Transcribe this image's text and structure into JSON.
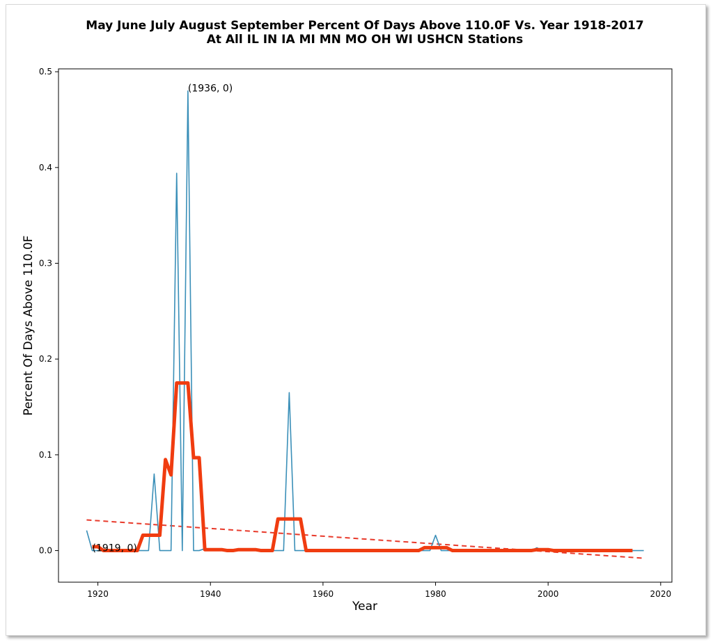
{
  "chart_data": {
    "type": "line",
    "title_line1": "May June July August September Percent Of Days Above 110.0F Vs. Year 1918-2017",
    "title_line2": "At All IL IN IA MI MN MO OH WI USHCN Stations",
    "xlabel": "Year",
    "ylabel": "Percent Of Days Above 110.0F",
    "xlim": [
      1913,
      2022
    ],
    "ylim": [
      -0.033,
      0.503
    ],
    "grid": false,
    "xticks": [
      1920,
      1940,
      1960,
      1980,
      2000,
      2020
    ],
    "yticks": [
      0.0,
      0.1,
      0.2,
      0.3,
      0.4,
      0.5
    ],
    "xtick_labels": [
      "1920",
      "1940",
      "1960",
      "1980",
      "2000",
      "2020"
    ],
    "ytick_labels": [
      "0.0",
      "0.1",
      "0.2",
      "0.3",
      "0.4",
      "0.5"
    ],
    "annotations": [
      {
        "text": "(1936, 0)",
        "x": 1936,
        "y": 0.48
      },
      {
        "text": "(1919, 0)",
        "x": 1919,
        "y": 0.0
      }
    ],
    "colors": {
      "annual": "#3a8fb8",
      "smoothed": "#f03c10",
      "trend": "#e8392a"
    },
    "series": [
      {
        "style": "thin-line",
        "x": [
          1918,
          1919,
          1920,
          1921,
          1922,
          1923,
          1924,
          1925,
          1926,
          1927,
          1928,
          1929,
          1930,
          1931,
          1932,
          1933,
          1934,
          1935,
          1936,
          1937,
          1938,
          1939,
          1940,
          1941,
          1942,
          1943,
          1944,
          1945,
          1946,
          1947,
          1948,
          1949,
          1950,
          1951,
          1952,
          1953,
          1954,
          1955,
          1956,
          1957,
          1958,
          1959,
          1960,
          1961,
          1962,
          1963,
          1964,
          1965,
          1966,
          1967,
          1968,
          1969,
          1970,
          1971,
          1972,
          1973,
          1974,
          1975,
          1976,
          1977,
          1978,
          1979,
          1980,
          1981,
          1982,
          1983,
          1984,
          1985,
          1986,
          1987,
          1988,
          1989,
          1990,
          1991,
          1992,
          1993,
          1994,
          1995,
          1996,
          1997,
          1998,
          1999,
          2000,
          2001,
          2002,
          2003,
          2004,
          2005,
          2006,
          2007,
          2008,
          2009,
          2010,
          2011,
          2012,
          2013,
          2014,
          2015,
          2016,
          2017
        ],
        "values": [
          0.021,
          0.0,
          0.0,
          0.0,
          0.0,
          0.0,
          0.0,
          0.0,
          0.0,
          0.0,
          0.0,
          0.0,
          0.08,
          0.0,
          0.0,
          0.0,
          0.394,
          0.0,
          0.48,
          0.0,
          0.0,
          0.002,
          0.0,
          0.0,
          0.0,
          0.0,
          0.001,
          0.0,
          0.002,
          0.0,
          0.0,
          0.0,
          0.0,
          0.0,
          0.0,
          0.0,
          0.165,
          0.0,
          0.0,
          0.0,
          0.0,
          0.0,
          0.0,
          0.0,
          0.0,
          0.0,
          0.0,
          0.0,
          0.0,
          0.0,
          0.0,
          0.0,
          0.0,
          0.0,
          0.0,
          0.0,
          0.0,
          0.0,
          0.0,
          0.0,
          0.0,
          0.0,
          0.016,
          0.0,
          0.0,
          0.0,
          0.0,
          0.0,
          0.0,
          0.0,
          0.0,
          0.0,
          0.0,
          0.0,
          0.0,
          0.0,
          0.0,
          0.0,
          0.0,
          0.0,
          0.003,
          0.0,
          0.0,
          0.0,
          0.0,
          0.0,
          0.0,
          0.0,
          0.0,
          0.0,
          0.0,
          0.0,
          0.0,
          0.0,
          0.0,
          0.0,
          0.0,
          0.0,
          0.0,
          0.0
        ]
      },
      {
        "style": "thick-line",
        "x": [
          1919,
          1920,
          1921,
          1922,
          1923,
          1924,
          1925,
          1926,
          1927,
          1928,
          1929,
          1930,
          1931,
          1932,
          1933,
          1934,
          1935,
          1936,
          1937,
          1938,
          1939,
          1940,
          1941,
          1942,
          1943,
          1944,
          1945,
          1946,
          1947,
          1948,
          1949,
          1950,
          1951,
          1952,
          1953,
          1954,
          1955,
          1956,
          1957,
          1958,
          1959,
          1960,
          1961,
          1962,
          1963,
          1964,
          1965,
          1966,
          1967,
          1968,
          1969,
          1970,
          1971,
          1972,
          1973,
          1974,
          1975,
          1976,
          1977,
          1978,
          1979,
          1980,
          1981,
          1982,
          1983,
          1984,
          1985,
          1986,
          1987,
          1988,
          1989,
          1990,
          1991,
          1992,
          1993,
          1994,
          1995,
          1996,
          1997,
          1998,
          1999,
          2000,
          2001,
          2002,
          2003,
          2004,
          2005,
          2006,
          2007,
          2008,
          2009,
          2010,
          2011,
          2012,
          2013,
          2014,
          2015
        ],
        "values": [
          0.004,
          0.004,
          0.0,
          0.0,
          0.0,
          0.0,
          0.0,
          0.0,
          0.0,
          0.016,
          0.016,
          0.016,
          0.016,
          0.095,
          0.079,
          0.175,
          0.175,
          0.175,
          0.097,
          0.097,
          0.001,
          0.001,
          0.001,
          0.001,
          0.0,
          0.0,
          0.001,
          0.001,
          0.001,
          0.001,
          0.0,
          0.0,
          0.0,
          0.033,
          0.033,
          0.033,
          0.033,
          0.033,
          0.0,
          0.0,
          0.0,
          0.0,
          0.0,
          0.0,
          0.0,
          0.0,
          0.0,
          0.0,
          0.0,
          0.0,
          0.0,
          0.0,
          0.0,
          0.0,
          0.0,
          0.0,
          0.0,
          0.0,
          0.0,
          0.003,
          0.003,
          0.003,
          0.003,
          0.003,
          0.0,
          0.0,
          0.0,
          0.0,
          0.0,
          0.0,
          0.0,
          0.0,
          0.0,
          0.0,
          0.0,
          0.0,
          0.0,
          0.0,
          0.0,
          0.001,
          0.001,
          0.001,
          0.0,
          0.0,
          0.0,
          0.0,
          0.0,
          0.0,
          0.0,
          0.0,
          0.0,
          0.0,
          0.0,
          0.0,
          0.0,
          0.0,
          0.0
        ]
      },
      {
        "style": "dashed-line",
        "x": [
          1918,
          2017
        ],
        "values": [
          0.032,
          -0.008
        ]
      }
    ]
  }
}
